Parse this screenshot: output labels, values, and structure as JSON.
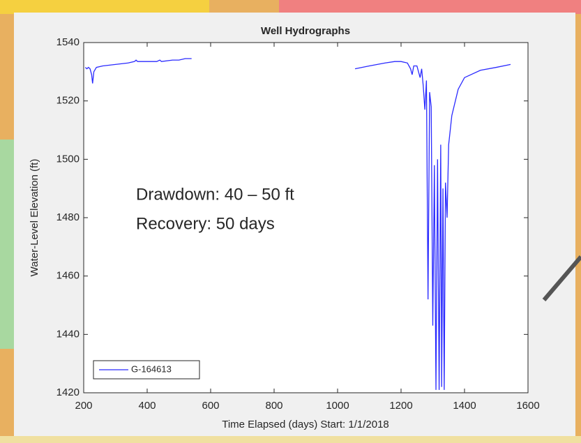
{
  "chart_data": {
    "type": "line",
    "title": "Well Hydrographs",
    "xlabel": "Time Elapsed (days) Start: 1/1/2018",
    "ylabel": "Water-Level Elevation (ft)",
    "annotations": [
      "Drawdown: 40 – 50 ft",
      "Recovery: 50 days"
    ],
    "x": [
      205,
      210,
      215,
      220,
      225,
      228,
      232,
      240,
      260,
      300,
      340,
      360,
      365,
      370,
      400,
      430,
      440,
      445,
      480,
      500,
      520,
      540,
      545,
      1055,
      1100,
      1150,
      1180,
      1200,
      1220,
      1230,
      1235,
      1240,
      1250,
      1255,
      1260,
      1265,
      1270,
      1275,
      1280,
      1285,
      1290,
      1295,
      1300,
      1305,
      1310,
      1315,
      1320,
      1325,
      1328,
      1332,
      1336,
      1340,
      1345,
      1350,
      1360,
      1380,
      1400,
      1450,
      1500,
      1545
    ],
    "series": [
      {
        "name": "G-164613",
        "color": "#2a2aff",
        "values": [
          1531.5,
          1531,
          1531.5,
          1531,
          1529,
          1526,
          1530,
          1531.5,
          1532,
          1532.5,
          1533,
          1533.5,
          1534,
          1533.5,
          1533.5,
          1533.5,
          1534,
          1533.5,
          1534,
          1534,
          1534.5,
          1534.5,
          null,
          1531,
          1532,
          1533,
          1533.5,
          1533.5,
          1533,
          1531,
          1529,
          1532,
          1532,
          1530,
          1528,
          1531,
          1525,
          1517,
          1527,
          1452,
          1523,
          1518,
          1443,
          1498,
          1421,
          1500,
          1421,
          1505,
          1422,
          1490,
          1421,
          1492,
          1480,
          1505,
          1515,
          1524,
          1528,
          1530.5,
          1531.5,
          1532.5
        ]
      }
    ],
    "xlim": [
      200,
      1600
    ],
    "xticks": [
      200,
      400,
      600,
      800,
      1000,
      1200,
      1400,
      1600
    ],
    "ylim": [
      1420,
      1540
    ],
    "yticks": [
      1420,
      1440,
      1460,
      1480,
      1500,
      1520,
      1540
    ],
    "legend": "southwest",
    "grid": false
  }
}
